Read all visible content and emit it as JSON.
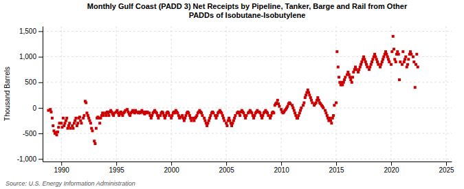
{
  "chart_data": {
    "type": "scatter",
    "title": "Monthly Gulf Coast (PADD 3) Net Receipts by Pipeline, Tanker, Barge and Rail from Other\nPADDs of Isobutane-Isobutylene",
    "ylabel": "Thousand Barrels",
    "source": "Source: U.S. Energy Information Administration",
    "color": "#cc0000",
    "marker": "square",
    "grid": true,
    "xlim": [
      1988.3,
      2025.5
    ],
    "ylim": [
      -1050,
      1600
    ],
    "xticks": [
      1990,
      1995,
      2000,
      2005,
      2010,
      2015,
      2020,
      2025
    ],
    "yticks": [
      {
        "value": -1000,
        "label": "-1,000"
      },
      -500,
      0,
      500,
      {
        "value": 1000,
        "label": "1,000"
      },
      {
        "value": 1500,
        "label": "1,500"
      }
    ],
    "x": [
      1988.83,
      1989.0,
      1989.08,
      1989.17,
      1989.25,
      1989.33,
      1989.42,
      1989.5,
      1989.58,
      1989.67,
      1989.75,
      1989.83,
      1990.0,
      1990.08,
      1990.17,
      1990.25,
      1990.33,
      1990.42,
      1990.5,
      1990.58,
      1990.67,
      1990.75,
      1990.83,
      1991.0,
      1991.08,
      1991.17,
      1991.25,
      1991.33,
      1991.42,
      1991.5,
      1991.58,
      1991.67,
      1991.75,
      1991.83,
      1992.0,
      1992.08,
      1992.17,
      1992.25,
      1992.33,
      1992.42,
      1992.5,
      1992.58,
      1992.67,
      1992.75,
      1992.83,
      1993.0,
      1993.08,
      1993.17,
      1993.25,
      1993.33,
      1993.42,
      1993.5,
      1993.58,
      1993.67,
      1993.75,
      1993.83,
      1994.0,
      1994.08,
      1994.17,
      1994.25,
      1994.33,
      1994.42,
      1994.5,
      1994.58,
      1994.67,
      1994.75,
      1994.83,
      1995.0,
      1995.08,
      1995.17,
      1995.25,
      1995.33,
      1995.42,
      1995.5,
      1995.58,
      1995.67,
      1995.75,
      1995.83,
      1996.0,
      1996.08,
      1996.17,
      1996.25,
      1996.33,
      1996.42,
      1996.5,
      1996.58,
      1996.67,
      1996.75,
      1996.83,
      1997.0,
      1997.08,
      1997.17,
      1997.25,
      1997.33,
      1997.42,
      1997.5,
      1997.58,
      1997.67,
      1997.75,
      1997.83,
      1998.0,
      1998.08,
      1998.17,
      1998.25,
      1998.33,
      1998.42,
      1998.5,
      1998.58,
      1998.67,
      1998.75,
      1998.83,
      1999.0,
      1999.08,
      1999.17,
      1999.25,
      1999.33,
      1999.42,
      1999.5,
      1999.58,
      1999.67,
      1999.75,
      1999.83,
      2000.0,
      2000.08,
      2000.17,
      2000.25,
      2000.33,
      2000.42,
      2000.5,
      2000.58,
      2000.67,
      2000.75,
      2000.83,
      2001.0,
      2001.08,
      2001.17,
      2001.25,
      2001.33,
      2001.42,
      2001.5,
      2001.58,
      2001.67,
      2001.75,
      2001.83,
      2002.0,
      2002.08,
      2002.17,
      2002.25,
      2002.33,
      2002.42,
      2002.5,
      2002.58,
      2002.67,
      2002.75,
      2002.83,
      2003.0,
      2003.08,
      2003.17,
      2003.25,
      2003.33,
      2003.42,
      2003.5,
      2003.58,
      2003.67,
      2003.75,
      2003.83,
      2004.0,
      2004.08,
      2004.17,
      2004.25,
      2004.33,
      2004.42,
      2004.5,
      2004.58,
      2004.67,
      2004.75,
      2004.83,
      2005.0,
      2005.08,
      2005.17,
      2005.25,
      2005.33,
      2005.42,
      2005.5,
      2005.58,
      2005.67,
      2005.75,
      2005.83,
      2006.0,
      2006.08,
      2006.17,
      2006.25,
      2006.33,
      2006.42,
      2006.5,
      2006.58,
      2006.67,
      2006.75,
      2006.83,
      2007.0,
      2007.08,
      2007.17,
      2007.25,
      2007.33,
      2007.42,
      2007.5,
      2007.58,
      2007.67,
      2007.75,
      2007.83,
      2008.0,
      2008.08,
      2008.17,
      2008.25,
      2008.33,
      2008.42,
      2008.5,
      2008.58,
      2008.67,
      2008.75,
      2008.83,
      2009.0,
      2009.08,
      2009.17,
      2009.25,
      2009.33,
      2009.42,
      2009.5,
      2009.58,
      2009.67,
      2009.75,
      2009.83,
      2010.0,
      2010.08,
      2010.17,
      2010.25,
      2010.33,
      2010.42,
      2010.5,
      2010.58,
      2010.67,
      2010.75,
      2010.83,
      2011.0,
      2011.08,
      2011.17,
      2011.25,
      2011.33,
      2011.42,
      2011.5,
      2011.58,
      2011.67,
      2011.75,
      2011.83,
      2012.0,
      2012.08,
      2012.17,
      2012.25,
      2012.33,
      2012.42,
      2012.5,
      2012.58,
      2012.67,
      2012.75,
      2012.83,
      2013.0,
      2013.08,
      2013.17,
      2013.25,
      2013.33,
      2013.42,
      2013.5,
      2013.58,
      2013.67,
      2013.75,
      2013.83,
      2014.0,
      2014.08,
      2014.17,
      2014.25,
      2014.33,
      2014.42,
      2014.5,
      2014.58,
      2014.67,
      2014.75,
      2014.83,
      2015.0,
      2015.08,
      2015.17,
      2015.25,
      2015.33,
      2015.42,
      2015.5,
      2015.58,
      2015.67,
      2015.75,
      2015.83,
      2016.0,
      2016.08,
      2016.17,
      2016.25,
      2016.33,
      2016.42,
      2016.5,
      2016.58,
      2016.67,
      2016.75,
      2016.83,
      2017.0,
      2017.08,
      2017.17,
      2017.25,
      2017.33,
      2017.42,
      2017.5,
      2017.58,
      2017.67,
      2017.75,
      2017.83,
      2018.0,
      2018.08,
      2018.17,
      2018.25,
      2018.33,
      2018.42,
      2018.5,
      2018.58,
      2018.67,
      2018.75,
      2018.83,
      2019.0,
      2019.08,
      2019.17,
      2019.25,
      2019.33,
      2019.42,
      2019.5,
      2019.58,
      2019.67,
      2019.75,
      2019.83,
      2020.0,
      2020.08,
      2020.17,
      2020.25,
      2020.33,
      2020.42,
      2020.5,
      2020.58,
      2020.67,
      2020.75,
      2020.83,
      2021.0,
      2021.08,
      2021.17,
      2021.25,
      2021.33,
      2021.42,
      2021.5,
      2021.58,
      2021.67,
      2021.75,
      2021.83,
      2022.0,
      2022.08,
      2022.17,
      2022.25,
      2022.33,
      2022.42
    ],
    "values": [
      -50,
      -30,
      -80,
      -200,
      -350,
      -450,
      -500,
      -480,
      -530,
      -470,
      -380,
      -300,
      -300,
      -380,
      -200,
      -350,
      -300,
      -250,
      -200,
      -400,
      -350,
      -300,
      -400,
      -350,
      -400,
      -300,
      -250,
      -200,
      -350,
      -300,
      -200,
      -180,
      -250,
      -300,
      -200,
      -150,
      130,
      100,
      -100,
      -150,
      -200,
      -250,
      -300,
      -400,
      -450,
      -650,
      -700,
      -400,
      -200,
      -180,
      -200,
      -300,
      -200,
      -150,
      -100,
      -150,
      -100,
      -150,
      -80,
      -100,
      -150,
      -80,
      -50,
      -80,
      -120,
      -150,
      -100,
      -80,
      -50,
      -100,
      -150,
      -100,
      -80,
      -120,
      -150,
      -100,
      -80,
      -50,
      -30,
      -80,
      -120,
      -150,
      -100,
      -80,
      -50,
      -80,
      -100,
      -50,
      -80,
      -100,
      -80,
      -100,
      -80,
      -50,
      -80,
      -100,
      -120,
      -80,
      -100,
      -80,
      -100,
      -150,
      -200,
      -150,
      -100,
      -80,
      -50,
      -80,
      -100,
      -150,
      -200,
      -150,
      -100,
      -80,
      -100,
      -150,
      -200,
      -150,
      -100,
      -80,
      -100,
      -150,
      -200,
      -150,
      -100,
      -80,
      -100,
      -50,
      -80,
      -100,
      -150,
      -200,
      -180,
      -150,
      -200,
      -250,
      -200,
      -150,
      -100,
      -80,
      -100,
      -150,
      -200,
      -250,
      -200,
      -250,
      -200,
      -180,
      -150,
      -100,
      -80,
      -50,
      -80,
      -100,
      -150,
      -200,
      -250,
      -300,
      -350,
      -300,
      -250,
      -200,
      -150,
      -100,
      -80,
      -100,
      -150,
      -200,
      -150,
      -100,
      -80,
      -50,
      -80,
      -100,
      -150,
      -200,
      -250,
      -300,
      -350,
      -250,
      -200,
      -250,
      -300,
      -350,
      -300,
      -250,
      -200,
      -150,
      -100,
      -80,
      -100,
      -150,
      -80,
      -50,
      -80,
      -100,
      -150,
      -200,
      -150,
      -100,
      -80,
      -50,
      -80,
      -100,
      -150,
      -200,
      -150,
      -100,
      -80,
      -50,
      -80,
      -100,
      -150,
      -200,
      -150,
      -100,
      -80,
      -50,
      -80,
      -100,
      -150,
      -200,
      -150,
      -100,
      -80,
      -100,
      50,
      80,
      100,
      150,
      80,
      30,
      -30,
      -80,
      -100,
      -80,
      -50,
      -30,
      0,
      30,
      80,
      100,
      80,
      50,
      0,
      -50,
      -100,
      -150,
      -200,
      -200,
      -150,
      -100,
      -50,
      0,
      50,
      100,
      200,
      250,
      300,
      350,
      300,
      250,
      200,
      150,
      100,
      50,
      80,
      100,
      150,
      200,
      150,
      100,
      80,
      50,
      30,
      0,
      -50,
      -100,
      -150,
      -200,
      -250,
      -200,
      -250,
      -300,
      -200,
      -150,
      50,
      100,
      1100,
      800,
      600,
      500,
      450,
      500,
      450,
      500,
      550,
      600,
      650,
      700,
      650,
      600,
      550,
      500,
      600,
      700,
      750,
      800,
      750,
      700,
      750,
      800,
      850,
      900,
      950,
      1000,
      950,
      900,
      850,
      800,
      750,
      800,
      850,
      900,
      950,
      1000,
      1050,
      1000,
      950,
      900,
      850,
      800,
      850,
      900,
      950,
      1000,
      1050,
      1100,
      1050,
      1000,
      950,
      900,
      850,
      1100,
      1400,
      1150,
      950,
      900,
      1050,
      1100,
      1050,
      550,
      900,
      850,
      1100,
      900,
      950,
      1000,
      800,
      850,
      950,
      1050,
      1100,
      1050,
      1000,
      900,
      400,
      850,
      1050,
      800
    ]
  }
}
